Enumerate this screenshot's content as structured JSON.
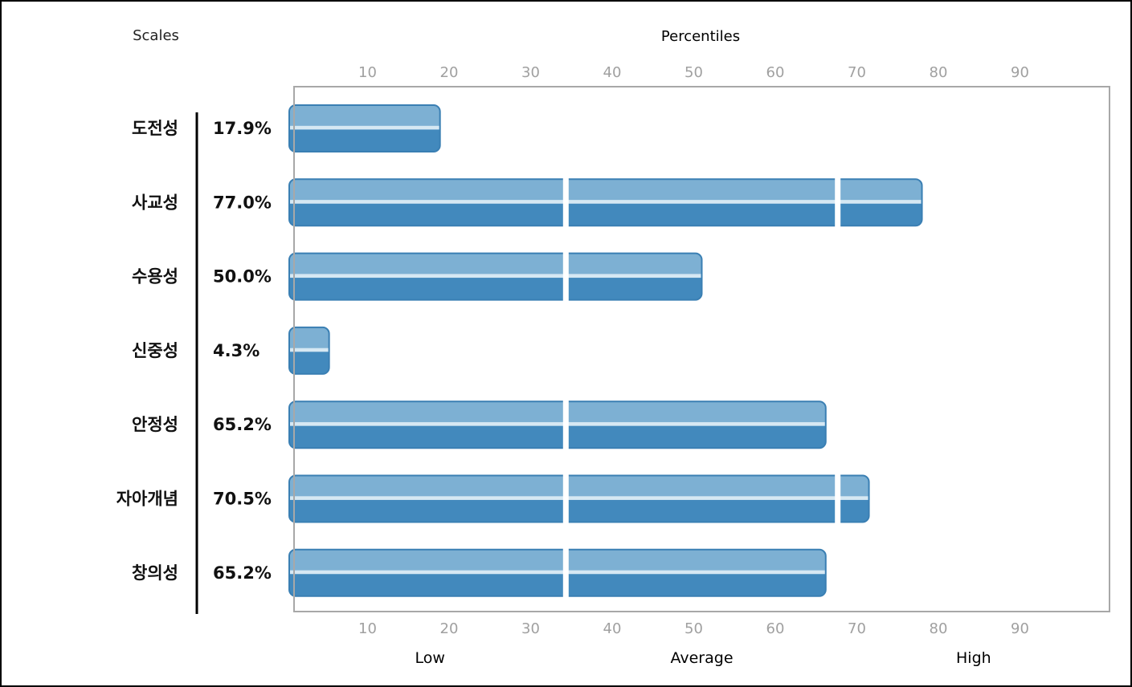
{
  "chart_data": {
    "type": "bar",
    "orientation": "horizontal",
    "scales_label": "Scales",
    "xlabel": "Percentiles",
    "xlim": [
      0,
      100
    ],
    "xticks": [
      10,
      20,
      30,
      40,
      50,
      60,
      70,
      80,
      90
    ],
    "categories": [
      "도전성",
      "사교성",
      "수용성",
      "신중성",
      "안정성",
      "자아개념",
      "창의성"
    ],
    "values": [
      17.9,
      77.0,
      50.0,
      4.3,
      65.2,
      70.5,
      65.2
    ],
    "value_labels": [
      "17.9%",
      "77.0%",
      "50.0%",
      "4.3%",
      "65.2%",
      "70.5%",
      "65.2%"
    ],
    "bands": [
      "Low",
      "Average",
      "High"
    ],
    "band_dividers": [
      33.33,
      66.67
    ],
    "bar_color": "#4289bd",
    "bar_highlight_color": "#7db0d3",
    "grid": false
  }
}
